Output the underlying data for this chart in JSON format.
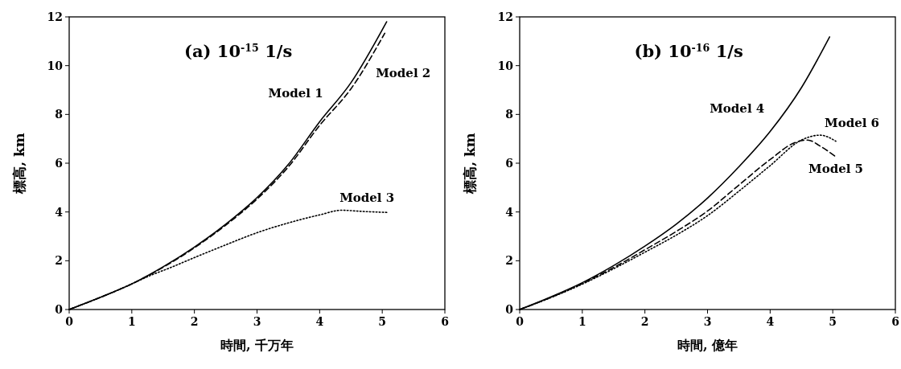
{
  "chart_data": [
    {
      "type": "line",
      "title": "(a) 10$^{-15}$ 1/s",
      "xlabel": "時間, 千万年",
      "ylabel": "標高, km",
      "xlim": [
        0,
        6
      ],
      "ylim": [
        0,
        12
      ],
      "xticks": [
        0,
        1,
        2,
        3,
        4,
        5,
        6
      ],
      "yticks": [
        0,
        2,
        4,
        6,
        8,
        10,
        12
      ],
      "grid": false,
      "legend": false,
      "marker": "none",
      "series": [
        {
          "name": "Model 1",
          "color": "#000000",
          "line_style": "solid",
          "x": [
            0,
            0.5,
            1,
            1.5,
            2,
            2.5,
            3,
            3.5,
            4,
            4.5,
            5.07
          ],
          "values": [
            0,
            0.5,
            1.05,
            1.75,
            2.56,
            3.5,
            4.59,
            5.95,
            7.7,
            9.3,
            11.8
          ]
        },
        {
          "name": "Model 2",
          "color": "#000000",
          "line_style": "dashed",
          "x": [
            0,
            0.5,
            1,
            1.5,
            2,
            2.5,
            3,
            3.5,
            4,
            4.5,
            5.04
          ],
          "values": [
            0,
            0.5,
            1.05,
            1.73,
            2.53,
            3.46,
            4.53,
            5.85,
            7.55,
            9.05,
            11.33
          ]
        },
        {
          "name": "Model 3",
          "color": "#000000",
          "line_style": "dotted",
          "x": [
            0,
            0.5,
            1,
            1.3,
            1.6,
            2,
            2.5,
            3,
            3.5,
            4,
            4.35,
            4.7,
            5.09
          ],
          "values": [
            0,
            0.5,
            1.05,
            1.4,
            1.7,
            2.13,
            2.65,
            3.15,
            3.55,
            3.88,
            4.07,
            4.02,
            3.98
          ]
        }
      ]
    },
    {
      "type": "line",
      "title": "(b) 10$^{-16}$ 1/s",
      "xlabel": "時間, 億年",
      "ylabel": "標高, km",
      "xlim": [
        0,
        6
      ],
      "ylim": [
        0,
        12
      ],
      "xticks": [
        0,
        1,
        2,
        3,
        4,
        5,
        6
      ],
      "yticks": [
        0,
        2,
        4,
        6,
        8,
        10,
        12
      ],
      "grid": false,
      "legend": false,
      "marker": "none",
      "series": [
        {
          "name": "Model 4",
          "color": "#000000",
          "line_style": "solid",
          "x": [
            0,
            0.5,
            1,
            1.5,
            2,
            2.5,
            3,
            3.5,
            4,
            4.5,
            4.95
          ],
          "values": [
            0,
            0.52,
            1.1,
            1.8,
            2.6,
            3.5,
            4.57,
            5.85,
            7.3,
            9.1,
            11.18
          ]
        },
        {
          "name": "Model 5",
          "color": "#000000",
          "line_style": "dashed",
          "x": [
            0,
            0.5,
            1,
            1.5,
            2,
            2.5,
            3,
            3.5,
            4,
            4.4,
            4.6,
            4.8,
            5.05
          ],
          "values": [
            0,
            0.5,
            1.07,
            1.72,
            2.45,
            3.2,
            4.04,
            5.1,
            6.15,
            6.85,
            6.95,
            6.7,
            6.26
          ]
        },
        {
          "name": "Model 6",
          "color": "#000000",
          "line_style": "dotted",
          "x": [
            0,
            0.5,
            1,
            1.5,
            2,
            2.5,
            3,
            3.5,
            4,
            4.5,
            4.8,
            5.05
          ],
          "values": [
            0,
            0.49,
            1.04,
            1.67,
            2.35,
            3.05,
            3.85,
            4.85,
            5.9,
            6.95,
            7.15,
            6.9
          ]
        }
      ]
    }
  ]
}
